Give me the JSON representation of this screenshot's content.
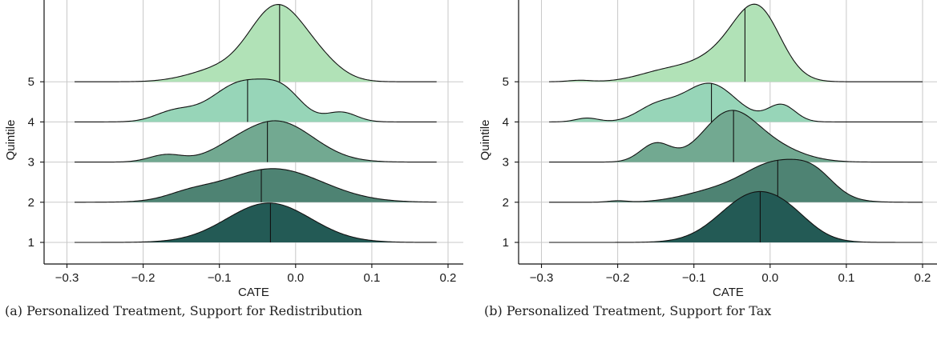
{
  "chart_data": [
    {
      "type": "ridgeline",
      "caption": "(a) Personalized Treatment, Support for Redistribution",
      "xlabel": "CATE",
      "ylabel": "Quintile",
      "xlim": [
        -0.33,
        0.22
      ],
      "x_ticks": [
        "-0.3",
        "-0.2",
        "-0.1",
        "0.0",
        "0.1",
        "0.2"
      ],
      "x_tick_values": [
        -0.3,
        -0.2,
        -0.1,
        0.0,
        0.1,
        0.2
      ],
      "y_ticks": [
        "1",
        "2",
        "3",
        "4",
        "5"
      ],
      "x_range": [
        -0.29,
        0.185
      ],
      "grid": true,
      "series": [
        {
          "quintile": 1,
          "color": "#235a55",
          "mean": -0.033,
          "peaks": [
            {
              "mu": -0.035,
              "sigma": 0.055,
              "h": 0.82
            }
          ]
        },
        {
          "quintile": 2,
          "color": "#4e8373",
          "mean": -0.045,
          "peaks": [
            {
              "mu": -0.03,
              "sigma": 0.065,
              "h": 0.7
            },
            {
              "mu": -0.14,
              "sigma": 0.03,
              "h": 0.12
            }
          ]
        },
        {
          "quintile": 3,
          "color": "#72a991",
          "mean": -0.037,
          "peaks": [
            {
              "mu": -0.025,
              "sigma": 0.048,
              "h": 0.85
            },
            {
              "mu": -0.17,
              "sigma": 0.022,
              "h": 0.15
            },
            {
              "mu": -0.09,
              "sigma": 0.03,
              "h": 0.1
            }
          ]
        },
        {
          "quintile": 4,
          "color": "#97d5b8",
          "mean": -0.063,
          "peaks": [
            {
              "mu": -0.07,
              "sigma": 0.04,
              "h": 0.82
            },
            {
              "mu": -0.015,
              "sigma": 0.025,
              "h": 0.45
            },
            {
              "mu": 0.06,
              "sigma": 0.02,
              "h": 0.2
            },
            {
              "mu": -0.16,
              "sigma": 0.025,
              "h": 0.2
            }
          ]
        },
        {
          "quintile": 5,
          "color": "#b1e2b7",
          "mean": -0.021,
          "peaks": [
            {
              "mu": -0.025,
              "sigma": 0.035,
              "h": 1.5
            },
            {
              "mu": 0.03,
              "sigma": 0.03,
              "h": 0.35
            },
            {
              "mu": -0.1,
              "sigma": 0.04,
              "h": 0.25
            }
          ]
        }
      ]
    },
    {
      "type": "ridgeline",
      "caption": "(b) Personalized Treatment, Support for Tax",
      "xlabel": "CATE",
      "ylabel": "Quintile",
      "xlim": [
        -0.33,
        0.22
      ],
      "x_ticks": [
        "-0.3",
        "-0.2",
        "-0.1",
        "0.0",
        "0.1",
        "0.2"
      ],
      "x_tick_values": [
        -0.3,
        -0.2,
        -0.1,
        0.0,
        0.1,
        0.2
      ],
      "y_ticks": [
        "1",
        "2",
        "3",
        "4",
        "5"
      ],
      "x_range": [
        -0.29,
        0.2
      ],
      "grid": true,
      "series": [
        {
          "quintile": 1,
          "color": "#235a55",
          "mean": -0.013,
          "peaks": [
            {
              "mu": -0.02,
              "sigma": 0.045,
              "h": 1.0
            },
            {
              "mu": 0.03,
              "sigma": 0.03,
              "h": 0.2
            }
          ]
        },
        {
          "quintile": 2,
          "color": "#4e8373",
          "mean": 0.01,
          "peaks": [
            {
              "mu": 0.01,
              "sigma": 0.045,
              "h": 0.82
            },
            {
              "mu": 0.06,
              "sigma": 0.025,
              "h": 0.3
            },
            {
              "mu": -0.08,
              "sigma": 0.04,
              "h": 0.18
            },
            {
              "mu": -0.2,
              "sigma": 0.012,
              "h": 0.03
            }
          ]
        },
        {
          "quintile": 3,
          "color": "#72a991",
          "mean": -0.048,
          "peaks": [
            {
              "mu": -0.055,
              "sigma": 0.035,
              "h": 0.95
            },
            {
              "mu": -0.15,
              "sigma": 0.02,
              "h": 0.38
            },
            {
              "mu": 0.0,
              "sigma": 0.04,
              "h": 0.3
            }
          ]
        },
        {
          "quintile": 4,
          "color": "#97d5b8",
          "mean": -0.077,
          "peaks": [
            {
              "mu": -0.08,
              "sigma": 0.035,
              "h": 0.8
            },
            {
              "mu": 0.015,
              "sigma": 0.018,
              "h": 0.35
            },
            {
              "mu": -0.15,
              "sigma": 0.025,
              "h": 0.3
            },
            {
              "mu": -0.24,
              "sigma": 0.015,
              "h": 0.08
            }
          ]
        },
        {
          "quintile": 5,
          "color": "#b1e2b7",
          "mean": -0.033,
          "peaks": [
            {
              "mu": -0.015,
              "sigma": 0.03,
              "h": 1.3
            },
            {
              "mu": -0.06,
              "sigma": 0.04,
              "h": 0.55
            },
            {
              "mu": -0.14,
              "sigma": 0.035,
              "h": 0.2
            },
            {
              "mu": -0.25,
              "sigma": 0.015,
              "h": 0.03
            }
          ]
        }
      ]
    }
  ]
}
